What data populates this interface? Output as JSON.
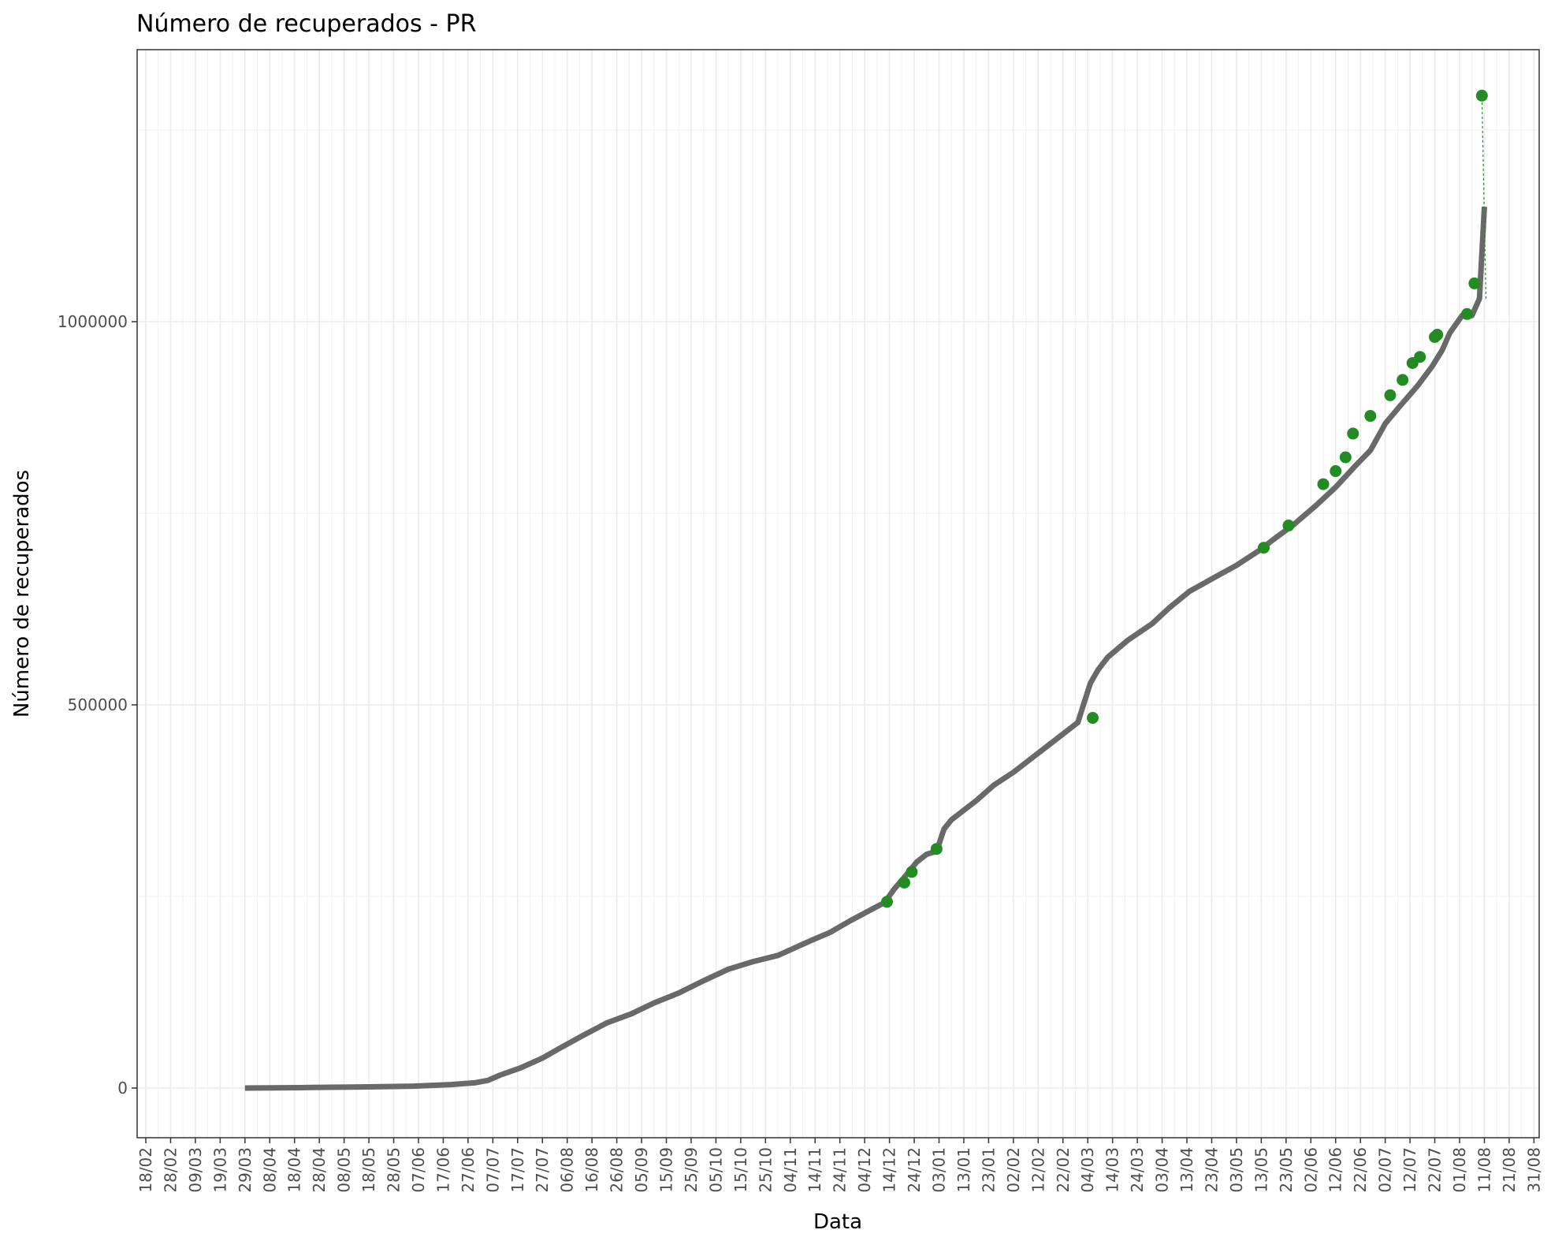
{
  "chart_data": {
    "type": "line",
    "title": "Número de recuperados - PR",
    "xlabel": "Data",
    "ylabel": "Número de recuperados",
    "x_tick_labels": [
      "18/02",
      "28/02",
      "09/03",
      "19/03",
      "29/03",
      "08/04",
      "18/04",
      "28/04",
      "08/05",
      "18/05",
      "28/05",
      "07/06",
      "17/06",
      "27/06",
      "07/07",
      "17/07",
      "27/07",
      "06/08",
      "16/08",
      "26/08",
      "05/09",
      "15/09",
      "25/09",
      "05/10",
      "15/10",
      "25/10",
      "04/11",
      "14/11",
      "24/11",
      "04/12",
      "14/12",
      "24/12",
      "03/01",
      "13/01",
      "23/01",
      "02/02",
      "12/02",
      "22/02",
      "04/03",
      "14/03",
      "24/03",
      "03/04",
      "13/04",
      "23/04",
      "03/05",
      "13/05",
      "23/05",
      "02/06",
      "12/06",
      "22/06",
      "02/07",
      "12/07",
      "22/07",
      "01/08",
      "11/08",
      "21/08",
      "31/08"
    ],
    "y_tick_labels": [
      "0",
      "500000",
      "1000000"
    ],
    "ylim": [
      -60000,
      1360000
    ],
    "grid": true,
    "colors": {
      "trend": "#696969",
      "points": "#228B22",
      "panel_border": "#333333",
      "grid": "#ebebeb"
    },
    "series": [
      {
        "role": "trend-line",
        "x": [
          "2020-03-29",
          "2020-04-10",
          "2020-04-25",
          "2020-05-15",
          "2020-06-05",
          "2020-06-20",
          "2020-06-30",
          "2020-07-05",
          "2020-07-10",
          "2020-07-18",
          "2020-07-27",
          "2020-08-03",
          "2020-08-12",
          "2020-08-22",
          "2020-09-01",
          "2020-09-10",
          "2020-09-20",
          "2020-09-30",
          "2020-10-10",
          "2020-10-20",
          "2020-10-30",
          "2020-11-12",
          "2020-11-20",
          "2020-11-28",
          "2020-12-05",
          "2020-12-12",
          "2020-12-16",
          "2020-12-20",
          "2020-12-25",
          "2020-12-29",
          "2021-01-02",
          "2021-01-05",
          "2021-01-08",
          "2021-01-12",
          "2021-01-18",
          "2021-01-25",
          "2021-02-02",
          "2021-02-10",
          "2021-02-18",
          "2021-02-28",
          "2021-03-05",
          "2021-03-08",
          "2021-03-12",
          "2021-03-20",
          "2021-03-30",
          "2021-04-06",
          "2021-04-14",
          "2021-04-24",
          "2021-05-03",
          "2021-05-12",
          "2021-05-18",
          "2021-05-26",
          "2021-06-04",
          "2021-06-12",
          "2021-06-20",
          "2021-06-26",
          "2021-07-02",
          "2021-07-08",
          "2021-07-15",
          "2021-07-21",
          "2021-07-25",
          "2021-07-28",
          "2021-08-02",
          "2021-08-06",
          "2021-08-09",
          "2021-08-11"
        ],
        "y": [
          0,
          200,
          700,
          1400,
          2500,
          4500,
          7000,
          10000,
          17000,
          26000,
          39000,
          52000,
          68000,
          85000,
          97000,
          111000,
          124000,
          140000,
          155000,
          165000,
          173000,
          192000,
          203000,
          218000,
          230000,
          242000,
          260000,
          275000,
          295000,
          305000,
          309000,
          338000,
          350000,
          360000,
          375000,
          395000,
          412000,
          432000,
          452000,
          477000,
          528000,
          545000,
          562000,
          584000,
          606000,
          627000,
          648000,
          666000,
          682000,
          701000,
          716000,
          735000,
          760000,
          784000,
          812000,
          832000,
          867000,
          890000,
          916000,
          942000,
          963000,
          985000,
          1008000,
          1008000,
          1030000,
          1150000
        ]
      },
      {
        "role": "points",
        "x": [
          "2020-12-13",
          "2020-12-20",
          "2020-12-23",
          "2021-01-02",
          "2021-03-06",
          "2021-05-14",
          "2021-05-24",
          "2021-06-07",
          "2021-06-12",
          "2021-06-16",
          "2021-06-19",
          "2021-06-26",
          "2021-07-04",
          "2021-07-09",
          "2021-07-13",
          "2021-07-16",
          "2021-07-22",
          "2021-07-23",
          "2021-08-04",
          "2021-08-07",
          "2021-08-10"
        ],
        "y": [
          243000,
          268000,
          282000,
          312000,
          483000,
          705000,
          734000,
          788000,
          805000,
          823000,
          854000,
          877000,
          904000,
          924000,
          946000,
          954000,
          980000,
          983000,
          1010000,
          1050000,
          1295000
        ]
      }
    ]
  }
}
